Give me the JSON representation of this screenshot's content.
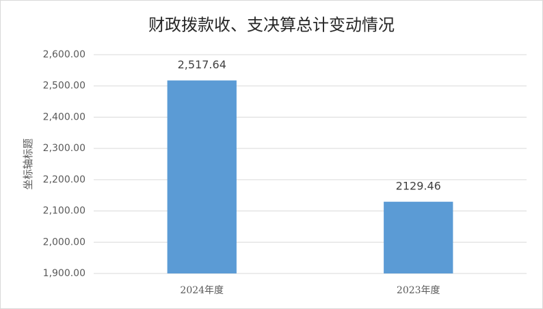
{
  "chart_data": {
    "type": "bar",
    "title": "财政拨款收、支决算总计变动情况",
    "y_label": "坐标轴标题",
    "categories": [
      "2024年度",
      "2023年度"
    ],
    "values": [
      2517.64,
      2129.46
    ],
    "value_labels": [
      "2,517.64",
      "2129.46"
    ],
    "color": "#5b9bd5",
    "ylim": [
      1900,
      2600
    ],
    "yticks": [
      {
        "value": 1900,
        "label": "1,900.00"
      },
      {
        "value": 2000,
        "label": "2,000.00"
      },
      {
        "value": 2100,
        "label": "2,100.00"
      },
      {
        "value": 2200,
        "label": "2,200.00"
      },
      {
        "value": 2300,
        "label": "2,300.00"
      },
      {
        "value": 2400,
        "label": "2,400.00"
      },
      {
        "value": 2500,
        "label": "2,500.00"
      },
      {
        "value": 2600,
        "label": "2,600.00"
      }
    ],
    "grid": true
  }
}
